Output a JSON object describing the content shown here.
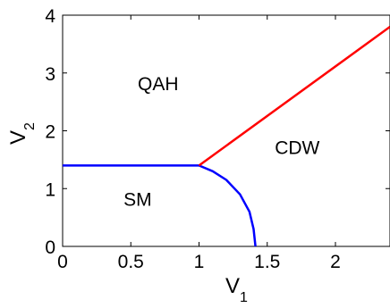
{
  "chart_data": {
    "type": "line",
    "xlim": [
      0,
      2.4
    ],
    "ylim": [
      0,
      4
    ],
    "x_ticks": [
      "0",
      "0.5",
      "1",
      "1.5",
      "2"
    ],
    "x_tick_values": [
      0,
      0.5,
      1,
      1.5,
      2
    ],
    "y_ticks": [
      "0",
      "1",
      "2",
      "3",
      "4"
    ],
    "y_tick_values": [
      0,
      1,
      2,
      3,
      4
    ],
    "xlabel": {
      "main": "V",
      "sub": "1"
    },
    "ylabel": {
      "main": "V",
      "sub": "2"
    },
    "grid": false,
    "series": [
      {
        "color": "#0000ff",
        "points": [
          [
            0,
            1.4
          ],
          [
            1,
            1.4
          ]
        ]
      },
      {
        "color": "#0000ff",
        "points": [
          [
            1,
            1.4
          ],
          [
            1.1,
            1.3
          ],
          [
            1.2,
            1.15
          ],
          [
            1.3,
            0.9
          ],
          [
            1.37,
            0.6
          ],
          [
            1.4,
            0.3
          ],
          [
            1.414,
            0
          ]
        ]
      },
      {
        "color": "#ff0000",
        "points": [
          [
            1,
            1.4
          ],
          [
            2.4,
            3.8
          ]
        ]
      }
    ],
    "annotations": [
      {
        "text": "QAH",
        "x": 0.7,
        "y": 2.7
      },
      {
        "text": "CDW",
        "x": 1.72,
        "y": 1.6
      },
      {
        "text": "SM",
        "x": 0.55,
        "y": 0.7
      }
    ]
  }
}
